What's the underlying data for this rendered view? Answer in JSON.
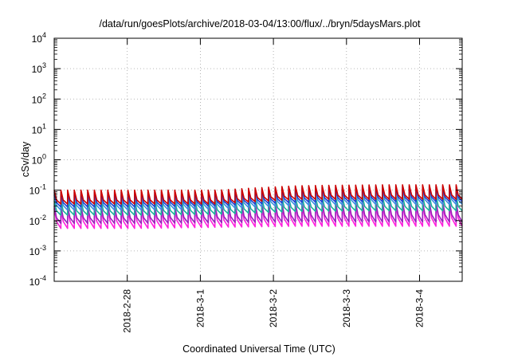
{
  "chart_data": {
    "type": "line",
    "title": "/data/run/goesPlots/archive/2018-03-04/13:00/flux/../bryn/5daysMars.plot",
    "xlabel": "Coordinated Universal Time (UTC)",
    "ylabel": "cSv/day",
    "yscale": "log",
    "ylim": [
      0.0001,
      10000
    ],
    "xlim": [
      "2018-02-27T00:00",
      "2018-03-04T14:00"
    ],
    "grid": true,
    "legend": "none",
    "x_ticks": [
      "2018-2-28",
      "2018-3-1",
      "2018-3-2",
      "2018-3-3",
      "2018-3-4"
    ],
    "y_ticks": [
      {
        "base": "10",
        "exp": "-4"
      },
      {
        "base": "10",
        "exp": "-3"
      },
      {
        "base": "10",
        "exp": "-2"
      },
      {
        "base": "10",
        "exp": "-1"
      },
      {
        "base": "10",
        "exp": "0"
      },
      {
        "base": "10",
        "exp": "1"
      },
      {
        "base": "10",
        "exp": "2"
      },
      {
        "base": "10",
        "exp": "3"
      },
      {
        "base": "10",
        "exp": "4"
      }
    ],
    "sawtooth_period_hours": 2.2,
    "series": [
      {
        "color": "#cc0000",
        "peak": [
          0.1,
          0.1,
          0.1,
          0.14,
          0.15,
          0.15
        ],
        "trough": [
          0.035,
          0.035,
          0.035,
          0.05,
          0.05,
          0.05
        ]
      },
      {
        "color": "#1f3fd0",
        "peak": [
          0.085,
          0.085,
          0.09,
          0.12,
          0.13,
          0.13
        ],
        "trough": [
          0.028,
          0.028,
          0.03,
          0.04,
          0.042,
          0.042
        ]
      },
      {
        "color": "#3a8fe0",
        "peak": [
          0.07,
          0.07,
          0.075,
          0.1,
          0.11,
          0.11
        ],
        "trough": [
          0.022,
          0.022,
          0.024,
          0.032,
          0.034,
          0.034
        ]
      },
      {
        "color": "#19b39b",
        "peak": [
          0.045,
          0.045,
          0.048,
          0.06,
          0.065,
          0.065
        ],
        "trough": [
          0.015,
          0.015,
          0.016,
          0.02,
          0.021,
          0.021
        ]
      },
      {
        "color": "#9922bb",
        "peak": [
          0.03,
          0.03,
          0.032,
          0.04,
          0.042,
          0.042
        ],
        "trough": [
          0.008,
          0.008,
          0.0085,
          0.009,
          0.009,
          0.009
        ]
      },
      {
        "color": "#ff22dd",
        "peak": [
          0.025,
          0.025,
          0.027,
          0.033,
          0.035,
          0.035
        ],
        "trough": [
          0.0055,
          0.0055,
          0.006,
          0.0065,
          0.0065,
          0.0065
        ]
      }
    ]
  }
}
